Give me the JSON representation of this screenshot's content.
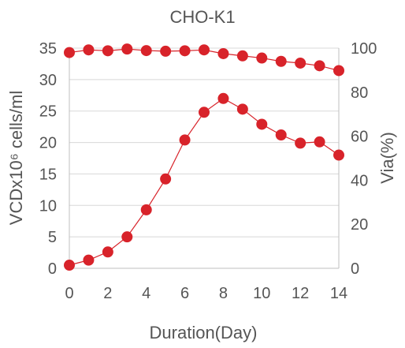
{
  "chart_data": {
    "type": "line",
    "title": "CHO-K1",
    "xlabel": "Duration(Day)",
    "ylabel_left": "VCDx10⁶ cells/ml",
    "ylabel_right": "Via(%)",
    "x": [
      0,
      1,
      2,
      3,
      4,
      5,
      6,
      7,
      8,
      9,
      10,
      11,
      12,
      13,
      14
    ],
    "x_ticks": [
      0,
      2,
      4,
      6,
      8,
      10,
      12,
      14
    ],
    "left_axis": {
      "range": [
        0,
        35
      ],
      "ticks": [
        0,
        5,
        10,
        15,
        20,
        25,
        30,
        35
      ]
    },
    "right_axis": {
      "range": [
        0,
        100
      ],
      "ticks": [
        0,
        20,
        40,
        60,
        80,
        100
      ]
    },
    "grid": true,
    "series": [
      {
        "axis": "left",
        "color": "#d8232a",
        "values": [
          0.5,
          1.3,
          2.6,
          5.0,
          9.3,
          14.2,
          20.4,
          24.8,
          27.0,
          25.3,
          22.9,
          21.2,
          19.9,
          20.1,
          18.0
        ]
      },
      {
        "axis": "right",
        "color": "#d8232a",
        "values": [
          98.0,
          99.2,
          98.8,
          99.6,
          98.9,
          98.6,
          98.8,
          99.2,
          97.5,
          96.5,
          95.5,
          94.0,
          93.2,
          92.0,
          89.8
        ]
      }
    ]
  }
}
